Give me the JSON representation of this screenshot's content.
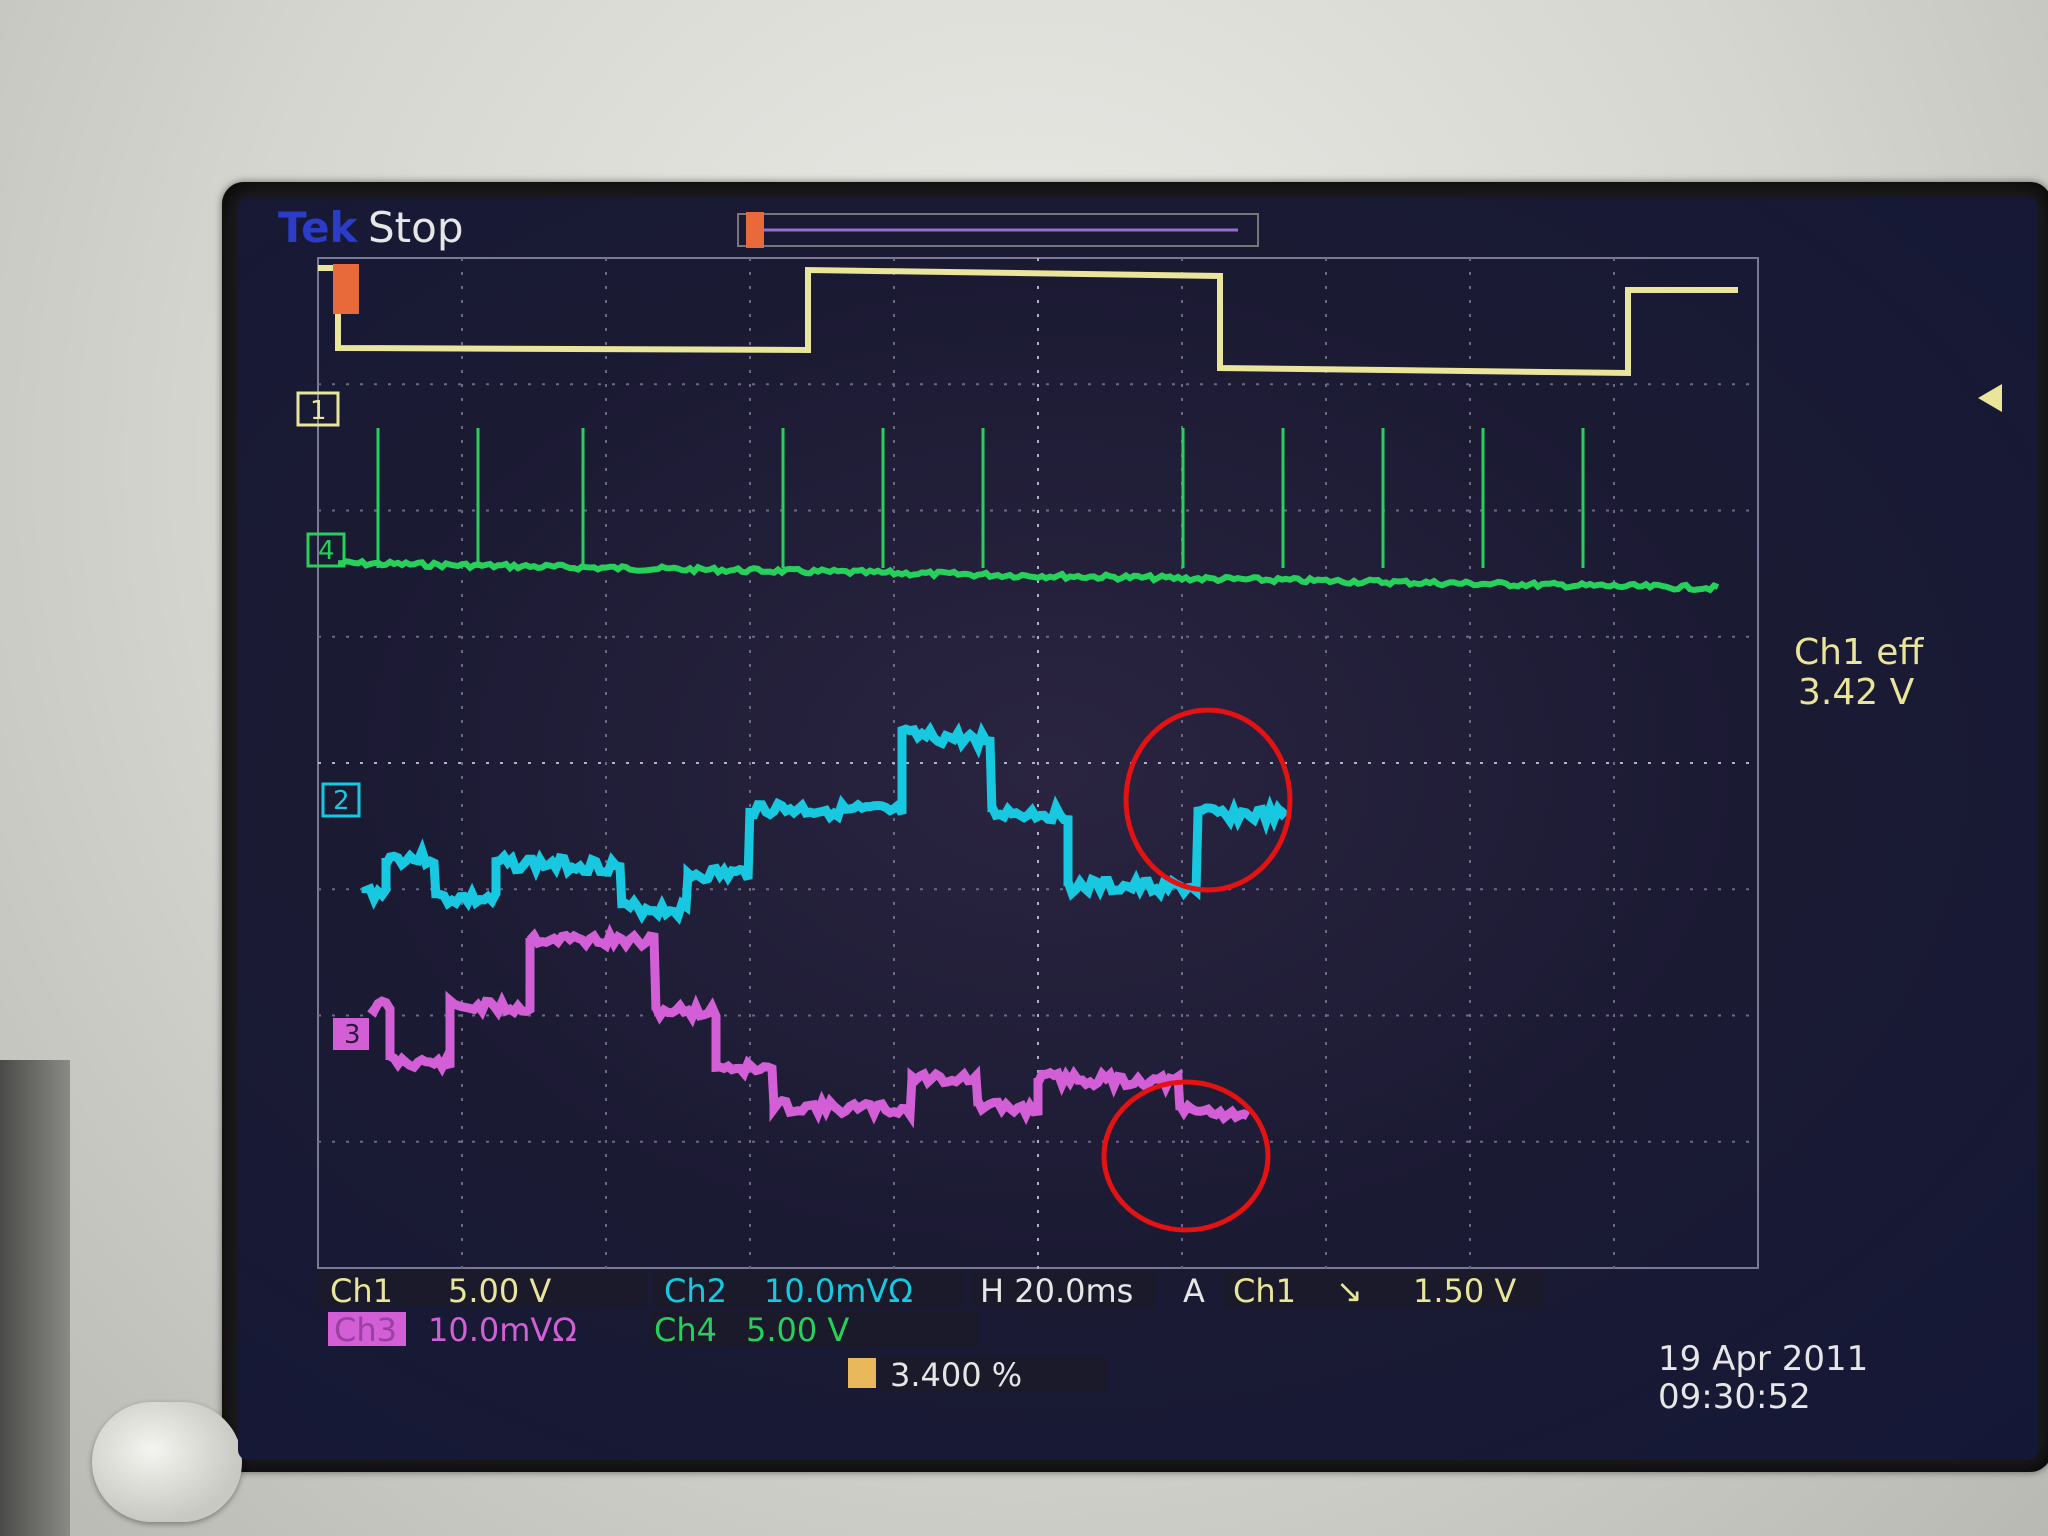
{
  "header": {
    "brand": "Tek",
    "state": "Stop"
  },
  "channels": {
    "ch1_marker": "1",
    "ch4_marker": "4",
    "ch2_marker": "2",
    "ch3_marker": "3"
  },
  "measurement": {
    "label": "Ch1 eff",
    "value": "3.42 V"
  },
  "status_bar": {
    "ch1_label": "Ch1",
    "ch1_scale": "5.00 V",
    "ch2_label": "Ch2",
    "ch2_scale": "10.0mVΩ",
    "ch3_label": "Ch3",
    "ch3_scale": "10.0mVΩ",
    "ch4_label": "Ch4",
    "ch4_scale": "5.00 V",
    "horizontal": "H 20.0ms",
    "trigger_mode": "A",
    "trigger_source": "Ch1",
    "trigger_slope": "↘",
    "trigger_level": "1.50 V",
    "trigger_position": "3.400 %",
    "date": "19 Apr 2011",
    "time": "09:30:52"
  },
  "colors": {
    "ch1": "#e9e59a",
    "ch2": "#18c8e0",
    "ch3": "#d25fd6",
    "ch4": "#27d05a",
    "annotation": "#e41212",
    "grid": "#8a8aa8"
  }
}
